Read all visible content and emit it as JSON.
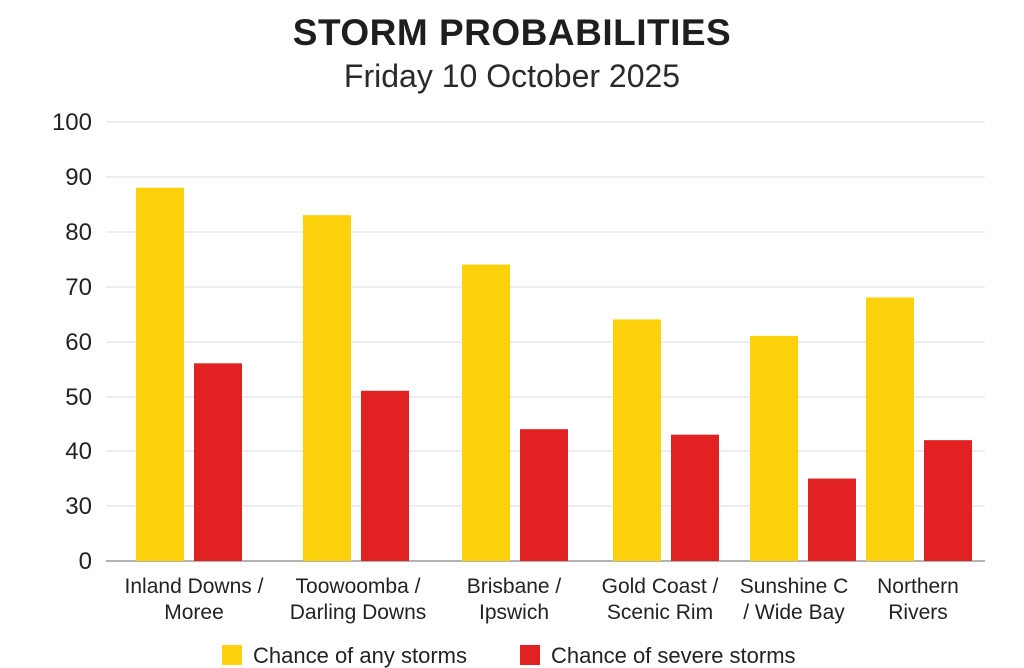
{
  "chart_data": {
    "type": "bar",
    "title": "STORM PROBABILITIES",
    "subtitle": "Friday 10 October 2025",
    "categories": [
      [
        "Inland Downs /",
        "Moree"
      ],
      [
        "Toowoomba /",
        "Darling Downs"
      ],
      [
        "Brisbane /",
        "Ipswich"
      ],
      [
        "Gold Coast /",
        "Scenic Rim"
      ],
      [
        "Sunshine C",
        "/ Wide Bay"
      ],
      [
        "Northern",
        "Rivers"
      ]
    ],
    "series": [
      {
        "name": "Chance of any storms",
        "color": "#FDD20C",
        "values": [
          88,
          83,
          74,
          64,
          61,
          68
        ]
      },
      {
        "name": "Chance of severe storms",
        "color": "#E22222",
        "values": [
          56,
          51,
          44,
          43,
          35,
          42
        ]
      }
    ],
    "ylim": [
      0,
      100
    ],
    "yticks": [
      "0",
      "30",
      "40",
      "50",
      "60",
      "70",
      "80",
      "90",
      "100"
    ],
    "grid": true,
    "legend_position": "bottom"
  }
}
